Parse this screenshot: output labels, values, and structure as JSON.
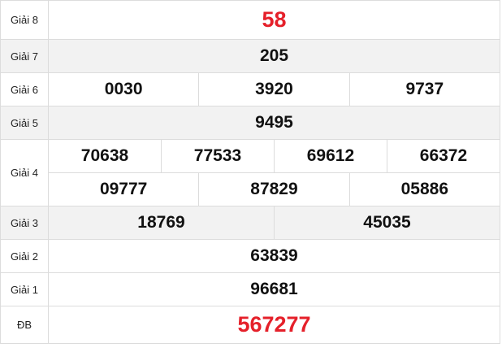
{
  "accent_color": "#e5202a",
  "rows": {
    "g8": {
      "label": "Giải 8",
      "values": [
        "58"
      ]
    },
    "g7": {
      "label": "Giải 7",
      "values": [
        "205"
      ]
    },
    "g6": {
      "label": "Giải 6",
      "values": [
        "0030",
        "3920",
        "9737"
      ]
    },
    "g5": {
      "label": "Giải 5",
      "values": [
        "9495"
      ]
    },
    "g4": {
      "label": "Giải 4",
      "values": [
        "70638",
        "77533",
        "69612",
        "66372",
        "09777",
        "87829",
        "05886"
      ]
    },
    "g3": {
      "label": "Giải 3",
      "values": [
        "18769",
        "45035"
      ]
    },
    "g2": {
      "label": "Giải 2",
      "values": [
        "63839"
      ]
    },
    "g1": {
      "label": "Giải 1",
      "values": [
        "96681"
      ]
    },
    "db": {
      "label": "ĐB",
      "values": [
        "567277"
      ]
    }
  }
}
